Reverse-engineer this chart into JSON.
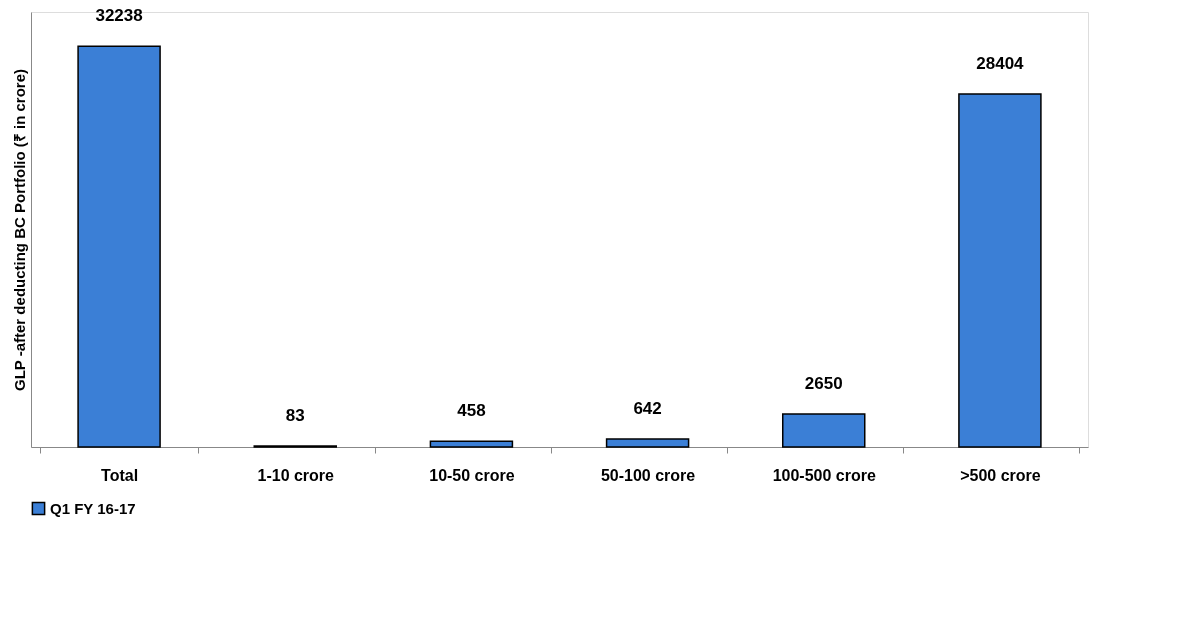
{
  "chart_data": {
    "type": "bar",
    "ylabel": "GLP -after deducting BC Portfolio (₹ in crore)",
    "categories": [
      "Total",
      "1-10 crore",
      "10-50 crore",
      "50-100 crore",
      "100-500 crore",
      ">500 crore"
    ],
    "series": [
      {
        "name": "Q1 FY 16-17",
        "color": "#3b7fd6",
        "values": [
          32238,
          83,
          458,
          642,
          2650,
          28404
        ]
      }
    ],
    "data_labels": true,
    "legend": "bottom",
    "grid": false,
    "tick_labels": "x"
  }
}
